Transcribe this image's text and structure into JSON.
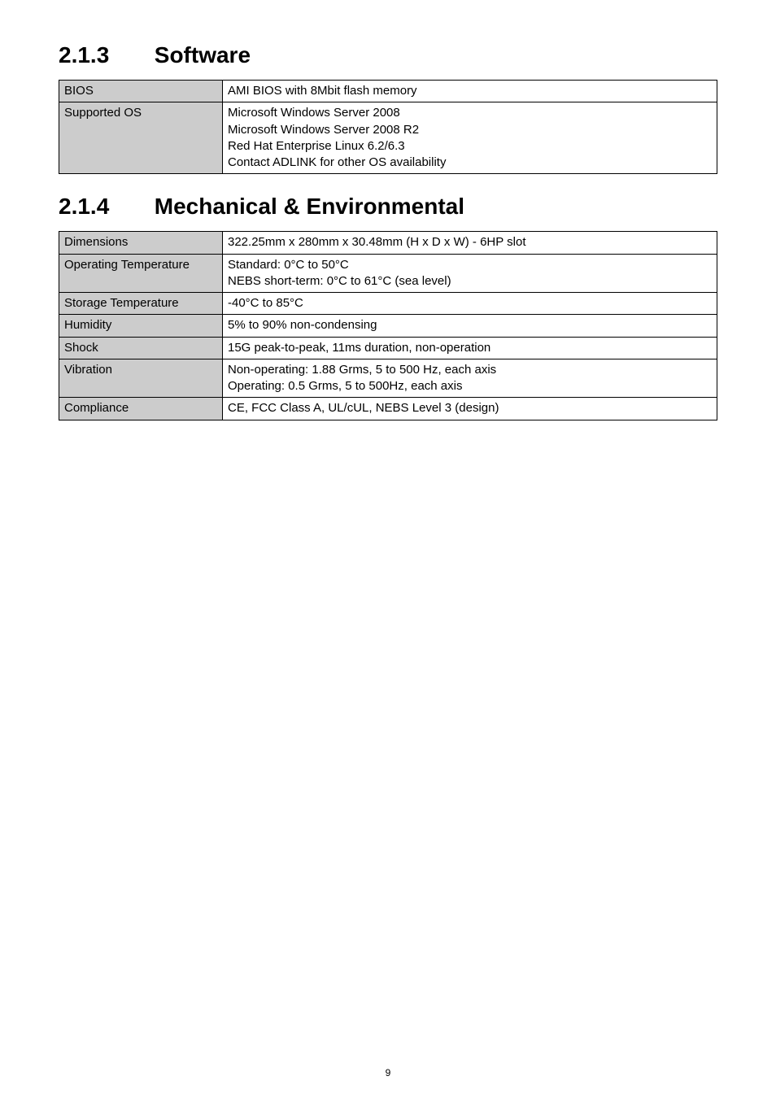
{
  "headings": {
    "software": {
      "num": "2.1.3",
      "title": "Software"
    },
    "mechenv": {
      "num": "2.1.4",
      "title": "Mechanical & Environmental"
    }
  },
  "software_table": {
    "rows": [
      {
        "label": "BIOS",
        "value": "AMI BIOS with 8Mbit flash memory"
      },
      {
        "label": "Supported OS",
        "value": "Microsoft Windows Server 2008\nMicrosoft Windows Server 2008 R2\nRed Hat Enterprise Linux 6.2/6.3\nContact ADLINK for other OS availability"
      }
    ]
  },
  "mechenv_table": {
    "rows": [
      {
        "label": "Dimensions",
        "value": "322.25mm x 280mm x 30.48mm (H x D x W) - 6HP slot"
      },
      {
        "label": "Operating Temperature",
        "value": "Standard: 0°C to 50°C\nNEBS short-term: 0°C to 61°C (sea level)"
      },
      {
        "label": "Storage Temperature",
        "value": "-40°C to 85°C"
      },
      {
        "label": "Humidity",
        "value": "5% to 90% non-condensing"
      },
      {
        "label": "Shock",
        "value": "15G peak-to-peak, 11ms duration, non-operation"
      },
      {
        "label": "Vibration",
        "value": "Non-operating: 1.88 Grms, 5 to 500 Hz, each axis\nOperating: 0.5 Grms, 5 to 500Hz, each axis"
      },
      {
        "label": "Compliance",
        "value": "CE, FCC Class A, UL/cUL, NEBS Level 3 (design)"
      }
    ]
  },
  "page_number": "9"
}
